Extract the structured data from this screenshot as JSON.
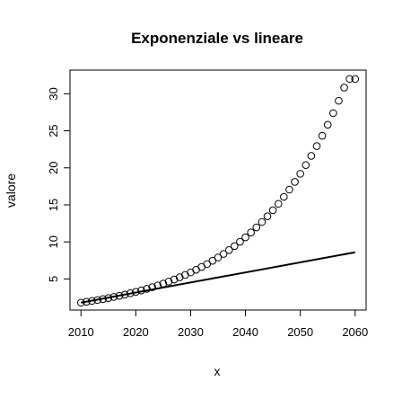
{
  "chart_data": {
    "type": "scatter",
    "title": "Exponenziale vs lineare",
    "xlabel": "x",
    "ylabel": "valore",
    "xlim": [
      2008,
      2062
    ],
    "ylim": [
      0.8,
      33.2
    ],
    "xticks": [
      2010,
      2020,
      2030,
      2040,
      2050,
      2060
    ],
    "yticks": [
      5,
      10,
      15,
      20,
      25,
      30
    ],
    "grid": false,
    "series": [
      {
        "style": "points",
        "marker": "open-circle",
        "x": [
          2010,
          2011,
          2012,
          2013,
          2014,
          2015,
          2016,
          2017,
          2018,
          2019,
          2020,
          2021,
          2022,
          2023,
          2024,
          2025,
          2026,
          2027,
          2028,
          2029,
          2030,
          2031,
          2032,
          2033,
          2034,
          2035,
          2036,
          2037,
          2038,
          2039,
          2040,
          2041,
          2042,
          2043,
          2044,
          2045,
          2046,
          2047,
          2048,
          2049,
          2050,
          2051,
          2052,
          2053,
          2054,
          2055,
          2056,
          2057,
          2058,
          2059,
          2060
        ],
        "y": [
          1.8,
          1.91,
          2.03,
          2.15,
          2.28,
          2.42,
          2.57,
          2.72,
          2.89,
          3.07,
          3.25,
          3.45,
          3.66,
          3.89,
          4.12,
          4.37,
          4.64,
          4.92,
          5.22,
          5.54,
          5.88,
          6.24,
          6.62,
          7.02,
          7.45,
          7.9,
          8.38,
          8.89,
          9.44,
          10.01,
          10.62,
          11.27,
          11.96,
          12.69,
          13.46,
          14.28,
          15.15,
          16.08,
          17.06,
          18.1,
          19.2,
          20.37,
          21.62,
          22.94,
          24.33,
          25.82,
          27.39,
          29.06,
          30.84,
          32.0,
          32.0
        ]
      },
      {
        "style": "line",
        "color": "#000000",
        "x": [
          2010,
          2060
        ],
        "y": [
          1.8,
          8.6
        ]
      }
    ]
  }
}
